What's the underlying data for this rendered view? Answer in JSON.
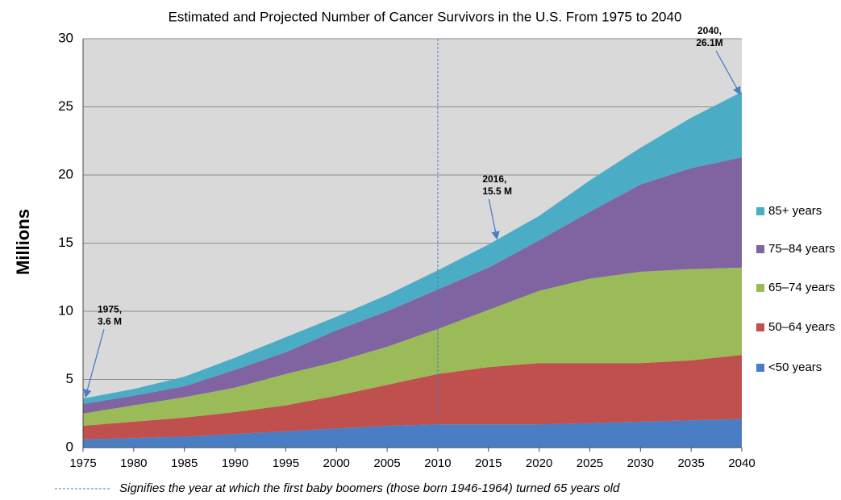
{
  "chart_data": {
    "type": "stacked_area",
    "title": "Estimated and Projected Number of Cancer Survivors in the U.S. From 1975 to 2040",
    "y_label": "Millions",
    "x": [
      1975,
      1980,
      1985,
      1990,
      1995,
      2000,
      2005,
      2010,
      2015,
      2020,
      2025,
      2030,
      2035,
      2040
    ],
    "series": [
      {
        "name": "<50 years",
        "color": "#4a7ec4",
        "values": [
          0.6,
          0.7,
          0.8,
          1.0,
          1.2,
          1.4,
          1.6,
          1.7,
          1.7,
          1.7,
          1.8,
          1.9,
          2.0,
          2.1
        ]
      },
      {
        "name": "50–64 years",
        "color": "#c0504d",
        "values": [
          1.0,
          1.2,
          1.4,
          1.6,
          1.9,
          2.4,
          3.0,
          3.7,
          4.2,
          4.5,
          4.4,
          4.3,
          4.4,
          4.7
        ]
      },
      {
        "name": "65–74 years",
        "color": "#9bbb59",
        "values": [
          0.9,
          1.2,
          1.5,
          1.8,
          2.3,
          2.5,
          2.8,
          3.3,
          4.2,
          5.3,
          6.2,
          6.7,
          6.7,
          6.4
        ]
      },
      {
        "name": "75–84 years",
        "color": "#8064a2",
        "values": [
          0.7,
          0.7,
          0.8,
          1.3,
          1.6,
          2.3,
          2.6,
          2.9,
          3.1,
          3.7,
          4.9,
          6.4,
          7.4,
          8.1
        ]
      },
      {
        "name": "85+ years",
        "color": "#4bacc6",
        "values": [
          0.4,
          0.5,
          0.7,
          0.9,
          1.1,
          1.0,
          1.2,
          1.4,
          1.7,
          1.8,
          2.3,
          2.7,
          3.7,
          4.8
        ]
      }
    ],
    "xlim": [
      1975,
      2040
    ],
    "xticks": [
      1975,
      1980,
      1985,
      1990,
      1995,
      2000,
      2005,
      2010,
      2015,
      2020,
      2025,
      2030,
      2035,
      2040
    ],
    "ylim": [
      0,
      30
    ],
    "yticks": [
      0,
      5,
      10,
      15,
      20,
      25,
      30
    ],
    "grid": true,
    "annotations": [
      {
        "lines": [
          "1975,",
          "3.6 M"
        ],
        "x": 1975,
        "y": 3.6
      },
      {
        "lines": [
          "2016,",
          "15.5 M"
        ],
        "x": 2016,
        "y": 15.5
      },
      {
        "lines": [
          "2040,",
          "26.1M"
        ],
        "x": 2040,
        "y": 26.1
      }
    ],
    "reference_line": {
      "x": 2010,
      "label": "Signifies the year at which the first baby boomers (those born 1946-1964) turned 65 years old"
    }
  }
}
